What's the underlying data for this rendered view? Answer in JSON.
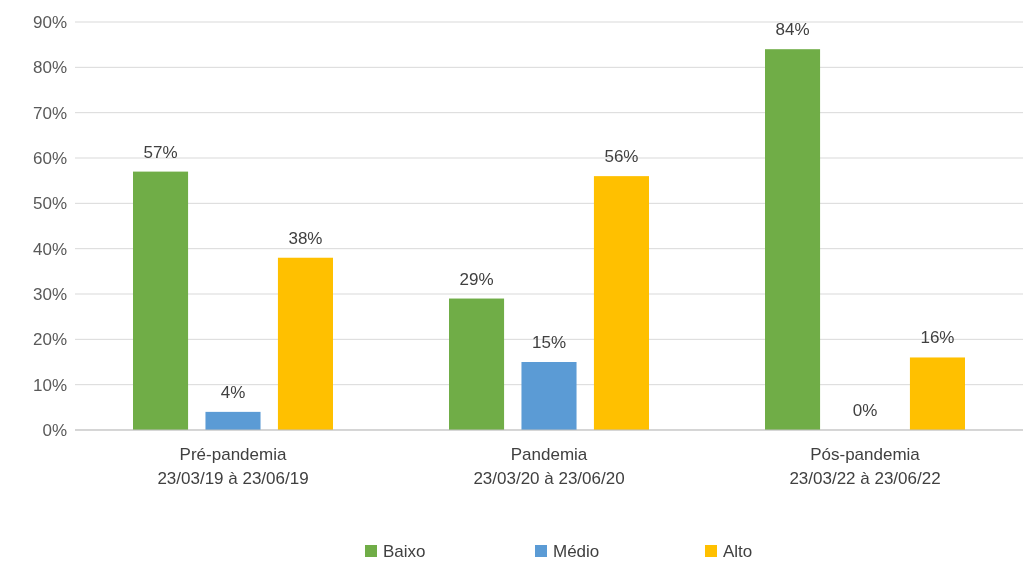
{
  "chart_data": {
    "type": "bar",
    "categories": [
      "Pré-pandemia\n23/03/19 à 23/06/19",
      "Pandemia\n23/03/20 à 23/06/20",
      "Pós-pandemia\n23/03/22 à 23/06/22"
    ],
    "series": [
      {
        "name": "Baixo",
        "color": "#70ad47",
        "values": [
          57,
          29,
          84
        ],
        "value_labels": [
          "57%",
          "29%",
          "84%"
        ]
      },
      {
        "name": "Médio",
        "color": "#5b9bd5",
        "values": [
          4,
          15,
          0
        ],
        "value_labels": [
          "4%",
          "15%",
          "0%"
        ]
      },
      {
        "name": "Alto",
        "color": "#ffc000",
        "values": [
          38,
          56,
          16
        ],
        "value_labels": [
          "38%",
          "56%",
          "16%"
        ]
      }
    ],
    "ylim": [
      0,
      90
    ],
    "yticks": [
      {
        "value": 0,
        "label": "0%"
      },
      {
        "value": 10,
        "label": "10%"
      },
      {
        "value": 20,
        "label": "20%"
      },
      {
        "value": 30,
        "label": "30%"
      },
      {
        "value": 40,
        "label": "40%"
      },
      {
        "value": 50,
        "label": "50%"
      },
      {
        "value": 60,
        "label": "60%"
      },
      {
        "value": 70,
        "label": "70%"
      },
      {
        "value": 80,
        "label": "80%"
      },
      {
        "value": 90,
        "label": "90%"
      }
    ],
    "grid": "y",
    "legend": "bottom"
  }
}
